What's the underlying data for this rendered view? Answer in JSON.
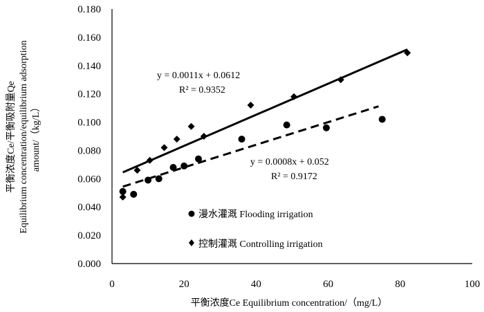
{
  "chart_data": {
    "type": "scatter",
    "xlabel": "平衡浓度Ce Equilibrium concentration/（mg/L）",
    "ylabel_lines": [
      "平衡浓度Ce/平衡吸附量Qe",
      "Equilibrium concentration/equilibrium adsorption",
      "amount/（kg/L）"
    ],
    "xlim": [
      0,
      100
    ],
    "ylim": [
      0,
      0.18
    ],
    "x_ticks": [
      0,
      20,
      40,
      60,
      80,
      100
    ],
    "x_tick_labels": [
      "0",
      "20",
      "40",
      "60",
      "80",
      "100"
    ],
    "y_ticks": [
      0,
      0.02,
      0.04,
      0.06,
      0.08,
      0.1,
      0.12,
      0.14,
      0.16,
      0.18
    ],
    "y_tick_labels": [
      "0.000",
      "0.020",
      "0.040",
      "0.060",
      "0.080",
      "0.100",
      "0.120",
      "0.140",
      "0.160",
      "0.180"
    ],
    "grid": false,
    "legend_position": "bottom-center",
    "series": [
      {
        "name": "漫水灌溉 Flooding irrigation",
        "marker": "circle",
        "color": "#000000",
        "x": [
          3,
          6,
          10,
          13,
          17,
          20,
          24,
          36,
          48.5,
          59.5,
          75
        ],
        "y": [
          0.051,
          0.049,
          0.059,
          0.06,
          0.068,
          0.069,
          0.074,
          0.088,
          0.098,
          0.096,
          0.102
        ],
        "trendline": {
          "slope": 0.0008,
          "intercept": 0.052,
          "x_range": [
            3,
            74
          ],
          "style": "dashed",
          "equation": "y = 0.0008x + 0.052",
          "r2": "R² = 0.9172"
        }
      },
      {
        "name": "控制灌溉 Controlling irrigation",
        "marker": "diamond",
        "color": "#000000",
        "x": [
          3,
          7,
          10.5,
          14.5,
          18,
          22,
          25.5,
          38.5,
          50.5,
          63.5,
          82
        ],
        "y": [
          0.047,
          0.066,
          0.073,
          0.082,
          0.088,
          0.097,
          0.09,
          0.112,
          0.118,
          0.13,
          0.149
        ],
        "trendline": {
          "slope": 0.0011,
          "intercept": 0.0612,
          "x_range": [
            3,
            82
          ],
          "style": "solid",
          "equation": "y = 0.0011x + 0.0612",
          "r2": "R² = 0.9352"
        }
      }
    ]
  }
}
